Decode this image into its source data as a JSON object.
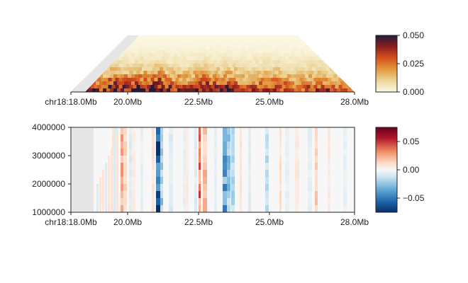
{
  "chart_data": [
    {
      "type": "heatmap",
      "subtype": "triangular contact map",
      "title": "",
      "chromosome": "chr18",
      "x_range_mb": [
        18.0,
        28.0
      ],
      "x_ticks": [
        {
          "value": 18.0,
          "label": "chr18:18.0Mb"
        },
        {
          "value": 20.0,
          "label": "20.0Mb"
        },
        {
          "value": 22.5,
          "label": "22.5Mb"
        },
        {
          "value": 25.0,
          "label": "25.0Mb"
        },
        {
          "value": 28.0,
          "label": "28.0Mb"
        }
      ],
      "missing_data_start_mb": 18.0,
      "missing_data_end_mb": 20.0,
      "colorbar": {
        "min": 0.0,
        "max": 0.05,
        "ticks": [
          "0.000",
          "0.025",
          "0.050"
        ],
        "colormap": [
          "#fbf8e4",
          "#ecd59a",
          "#e19a3d",
          "#d6511f",
          "#8c1f1f",
          "#241a3c"
        ]
      },
      "diagonal_intensity_profile": [
        {
          "mb": 18.5,
          "value": 0.035
        },
        {
          "mb": 19.0,
          "value": 0.03
        },
        {
          "mb": 19.5,
          "value": 0.045
        },
        {
          "mb": 20.0,
          "value": 0.04
        },
        {
          "mb": 20.5,
          "value": 0.045
        },
        {
          "mb": 21.0,
          "value": 0.05
        },
        {
          "mb": 21.5,
          "value": 0.035
        },
        {
          "mb": 22.0,
          "value": 0.03
        },
        {
          "mb": 22.5,
          "value": 0.045
        },
        {
          "mb": 23.0,
          "value": 0.035
        },
        {
          "mb": 23.5,
          "value": 0.04
        },
        {
          "mb": 24.0,
          "value": 0.03
        },
        {
          "mb": 24.5,
          "value": 0.03
        },
        {
          "mb": 25.0,
          "value": 0.035
        },
        {
          "mb": 25.5,
          "value": 0.03
        },
        {
          "mb": 26.0,
          "value": 0.025
        },
        {
          "mb": 26.5,
          "value": 0.03
        },
        {
          "mb": 27.0,
          "value": 0.03
        },
        {
          "mb": 27.5,
          "value": 0.025
        }
      ]
    },
    {
      "type": "heatmap",
      "subtype": "multi-window track",
      "title": "",
      "x_range_mb": [
        18.0,
        28.0
      ],
      "x_ticks": [
        {
          "value": 18.0,
          "label": "chr18:18.0Mb"
        },
        {
          "value": 20.0,
          "label": "20.0Mb"
        },
        {
          "value": 22.5,
          "label": "22.5Mb"
        },
        {
          "value": 25.0,
          "label": "25.0Mb"
        },
        {
          "value": 28.0,
          "label": "28.0Mb"
        }
      ],
      "y_range": [
        1000000,
        4000000
      ],
      "y_ticks": [
        "1000000",
        "2000000",
        "3000000",
        "4000000"
      ],
      "missing_data_end_mb": 18.8,
      "colorbar": {
        "min": -0.075,
        "max": 0.075,
        "ticks": [
          {
            "value": 0.05,
            "label": "0.05"
          },
          {
            "value": 0.0,
            "label": "0.00"
          },
          {
            "value": -0.05,
            "label": "−0.05"
          }
        ],
        "colormap": [
          "#08306b",
          "#2166ac",
          "#6aaed6",
          "#d1e5f0",
          "#f7f7f7",
          "#fddbc7",
          "#ef8a62",
          "#b2182b",
          "#67001f"
        ]
      },
      "columns": [
        {
          "mb": 19.45,
          "value": 0.012
        },
        {
          "mb": 19.55,
          "value": -0.01
        },
        {
          "mb": 19.75,
          "value": 0.03
        },
        {
          "mb": 19.85,
          "value": 0.018
        },
        {
          "mb": 20.05,
          "value": -0.012
        },
        {
          "mb": 20.15,
          "value": 0.008
        },
        {
          "mb": 20.45,
          "value": -0.008
        },
        {
          "mb": 20.85,
          "value": 0.012
        },
        {
          "mb": 21.0,
          "value": -0.07
        },
        {
          "mb": 21.15,
          "value": -0.03
        },
        {
          "mb": 21.45,
          "value": -0.012
        },
        {
          "mb": 21.95,
          "value": -0.008
        },
        {
          "mb": 22.05,
          "value": 0.008
        },
        {
          "mb": 22.35,
          "value": -0.012
        },
        {
          "mb": 22.5,
          "value": 0.04
        },
        {
          "mb": 22.65,
          "value": 0.025
        },
        {
          "mb": 23.05,
          "value": -0.008
        },
        {
          "mb": 23.35,
          "value": -0.04
        },
        {
          "mb": 23.5,
          "value": -0.03
        },
        {
          "mb": 23.65,
          "value": -0.025
        },
        {
          "mb": 23.95,
          "value": 0.012
        },
        {
          "mb": 24.25,
          "value": -0.012
        },
        {
          "mb": 24.85,
          "value": -0.02
        },
        {
          "mb": 25.35,
          "value": 0.015
        },
        {
          "mb": 25.55,
          "value": -0.008
        },
        {
          "mb": 25.9,
          "value": 0.01
        },
        {
          "mb": 26.35,
          "value": -0.008
        },
        {
          "mb": 26.6,
          "value": 0.02
        },
        {
          "mb": 27.05,
          "value": 0.01
        },
        {
          "mb": 27.6,
          "value": -0.008
        }
      ]
    }
  ]
}
